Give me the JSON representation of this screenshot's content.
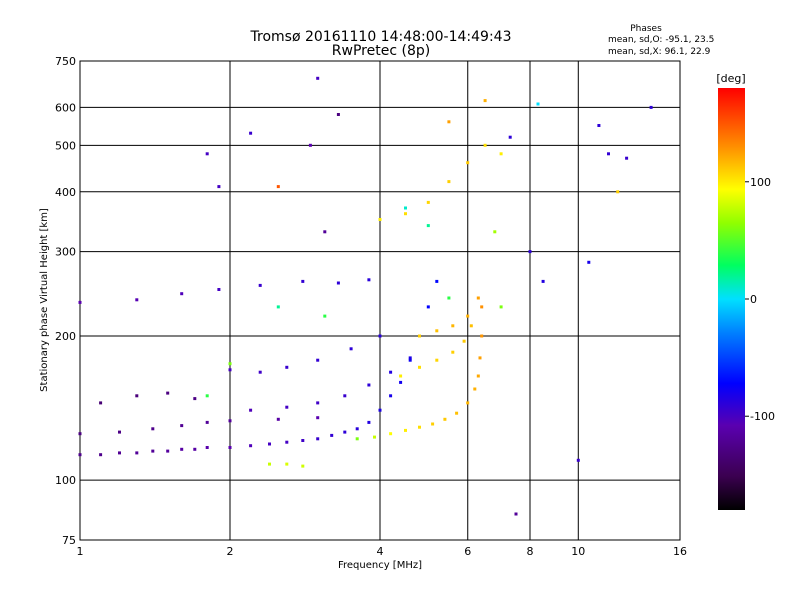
{
  "header": {
    "title_line1": "Tromsø 20161110 14:48:00-14:49:43",
    "title_line2": "RwPretec (8p)"
  },
  "stats": {
    "heading": "Phases",
    "line_o": "mean, sd,O: -95.1, 23.5",
    "line_x": "mean, sd,X:  96.1, 22.9"
  },
  "colorbar": {
    "unit_label": "[deg]",
    "tick_labels": [
      "100",
      "0",
      "-100"
    ],
    "tick_values": [
      100,
      0,
      -100
    ],
    "range": [
      -180,
      180
    ],
    "colormap": "rainbow: black-purple-blue-cyan-green-yellow-orange-red"
  },
  "chart_data": {
    "type": "scatter",
    "title": "Tromsø 20161110 14:48:00-14:49:43",
    "subtitle": "RwPretec (8p)",
    "xlabel": "Frequency [MHz]",
    "ylabel": "Stationary phase Virtual Height [km]",
    "xscale": "log",
    "yscale": "log",
    "xlim": [
      1,
      16
    ],
    "ylim": [
      75,
      750
    ],
    "grid": true,
    "x_ticks": [
      1,
      2,
      4,
      6,
      8,
      10,
      16
    ],
    "x_tick_labels": [
      "1",
      "2",
      "4",
      "6",
      "8",
      "10",
      "16"
    ],
    "y_ticks": [
      75,
      100,
      200,
      300,
      400,
      500,
      600,
      750
    ],
    "y_tick_labels": [
      "75",
      "100",
      "200",
      "300",
      "400",
      "500",
      "600",
      "750"
    ],
    "color_variable": "phase [deg]",
    "series": [
      {
        "description": "O-mode trace (blue/purple, phase ~ -95)",
        "points": [
          [
            1.0,
            113,
            -125
          ],
          [
            1.1,
            113,
            -125
          ],
          [
            1.2,
            114,
            -122
          ],
          [
            1.3,
            114,
            -120
          ],
          [
            1.4,
            115,
            -120
          ],
          [
            1.5,
            115,
            -118
          ],
          [
            1.6,
            116,
            -115
          ],
          [
            1.7,
            116,
            -115
          ],
          [
            1.8,
            117,
            -112
          ],
          [
            2.0,
            117,
            -110
          ],
          [
            2.2,
            118,
            -105
          ],
          [
            2.4,
            119,
            -100
          ],
          [
            2.6,
            120,
            -100
          ],
          [
            2.8,
            121,
            -98
          ],
          [
            3.0,
            122,
            -95
          ],
          [
            3.2,
            124,
            -92
          ],
          [
            3.4,
            126,
            -90
          ],
          [
            3.6,
            128,
            -88
          ],
          [
            3.8,
            132,
            -85
          ],
          [
            4.0,
            140,
            -82
          ],
          [
            4.2,
            150,
            -80
          ],
          [
            4.4,
            160,
            -78
          ],
          [
            4.6,
            178,
            -75
          ],
          [
            4.8,
            200,
            -72
          ],
          [
            5.0,
            230,
            -70
          ],
          [
            5.2,
            260,
            -68
          ],
          [
            1.0,
            125,
            -130
          ],
          [
            1.2,
            126,
            -128
          ],
          [
            1.4,
            128,
            -125
          ],
          [
            1.6,
            130,
            -122
          ],
          [
            1.8,
            132,
            -120
          ],
          [
            2.0,
            133,
            -118
          ],
          [
            2.5,
            134,
            -115
          ],
          [
            3.0,
            135,
            -110
          ],
          [
            2.0,
            170,
            -100
          ],
          [
            2.3,
            168,
            -98
          ],
          [
            2.6,
            172,
            -95
          ],
          [
            3.0,
            178,
            -92
          ],
          [
            3.5,
            188,
            -90
          ],
          [
            4.0,
            200,
            -88
          ],
          [
            2.2,
            140,
            -105
          ],
          [
            2.6,
            142,
            -100
          ],
          [
            3.0,
            145,
            -98
          ],
          [
            3.4,
            150,
            -95
          ],
          [
            3.8,
            158,
            -90
          ],
          [
            4.2,
            168,
            -85
          ],
          [
            4.6,
            180,
            -82
          ],
          [
            1.1,
            145,
            -135
          ],
          [
            1.3,
            150,
            -132
          ],
          [
            1.5,
            152,
            -130
          ],
          [
            1.7,
            148,
            -128
          ],
          [
            1.0,
            235,
            -110
          ],
          [
            1.3,
            238,
            -108
          ],
          [
            1.6,
            245,
            -105
          ],
          [
            1.9,
            250,
            -100
          ],
          [
            2.3,
            255,
            -95
          ],
          [
            2.8,
            260,
            -92
          ],
          [
            3.3,
            258,
            -90
          ],
          [
            3.8,
            262,
            -88
          ]
        ]
      },
      {
        "description": "X-mode trace (yellow/orange, phase ~ +96)",
        "points": [
          [
            3.6,
            122,
            60
          ],
          [
            3.9,
            123,
            80
          ],
          [
            4.2,
            125,
            95
          ],
          [
            4.5,
            127,
            100
          ],
          [
            4.8,
            129,
            105
          ],
          [
            5.1,
            131,
            110
          ],
          [
            5.4,
            134,
            112
          ],
          [
            5.7,
            138,
            115
          ],
          [
            6.0,
            145,
            118
          ],
          [
            6.2,
            155,
            120
          ],
          [
            6.3,
            165,
            122
          ],
          [
            6.35,
            180,
            125
          ],
          [
            6.4,
            200,
            128
          ],
          [
            6.4,
            230,
            130
          ],
          [
            4.4,
            165,
            100
          ],
          [
            4.8,
            172,
            105
          ],
          [
            5.2,
            178,
            108
          ],
          [
            5.6,
            185,
            110
          ],
          [
            5.9,
            195,
            112
          ],
          [
            6.1,
            210,
            115
          ],
          [
            4.8,
            200,
            110
          ],
          [
            5.2,
            205,
            115
          ],
          [
            5.6,
            210,
            118
          ],
          [
            6.0,
            220,
            120
          ],
          [
            6.3,
            240,
            125
          ],
          [
            4.0,
            350,
            100
          ],
          [
            4.5,
            360,
            105
          ],
          [
            5.0,
            380,
            108
          ],
          [
            5.5,
            420,
            110
          ],
          [
            6.0,
            460,
            112
          ],
          [
            6.5,
            500,
            105
          ],
          [
            7.0,
            480,
            100
          ],
          [
            2.4,
            108,
            80
          ],
          [
            2.6,
            108,
            85
          ],
          [
            2.8,
            107,
            82
          ],
          [
            2.5,
            410,
            150
          ]
        ]
      },
      {
        "description": "Scattered echoes",
        "points": [
          [
            3.1,
            330,
            -120
          ],
          [
            2.2,
            530,
            -95
          ],
          [
            2.9,
            500,
            -110
          ],
          [
            3.3,
            580,
            -130
          ],
          [
            3.0,
            690,
            -100
          ],
          [
            1.9,
            410,
            -100
          ],
          [
            1.8,
            480,
            -100
          ],
          [
            7.3,
            520,
            -90
          ],
          [
            8.0,
            300,
            -90
          ],
          [
            8.5,
            260,
            -85
          ],
          [
            10.0,
            110,
            -95
          ],
          [
            10.5,
            285,
            -80
          ],
          [
            11.0,
            550,
            -90
          ],
          [
            11.5,
            480,
            -92
          ],
          [
            12.5,
            470,
            -95
          ],
          [
            14.0,
            600,
            -90
          ],
          [
            8.3,
            610,
            0
          ],
          [
            6.5,
            620,
            120
          ],
          [
            5.5,
            560,
            125
          ],
          [
            7.5,
            85,
            -120
          ],
          [
            12.0,
            400,
            110
          ],
          [
            5.0,
            340,
            20
          ],
          [
            4.5,
            370,
            10
          ],
          [
            3.1,
            220,
            40
          ],
          [
            2.5,
            230,
            20
          ],
          [
            2.0,
            175,
            60
          ],
          [
            1.8,
            150,
            40
          ],
          [
            7.0,
            230,
            60
          ],
          [
            6.8,
            330,
            70
          ],
          [
            5.5,
            240,
            40
          ]
        ]
      }
    ]
  }
}
